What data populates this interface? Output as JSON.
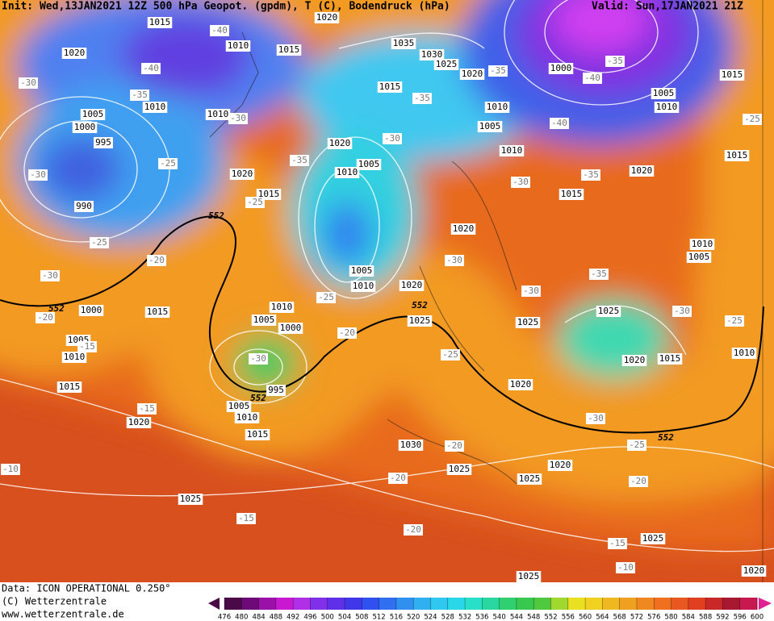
{
  "header": {
    "init": "Init: Wed,13JAN2021 12Z 500 hPa Geopot. (gpdm), T (C), Bodendruck (hPa)",
    "valid": "Valid: Sun,17JAN2021 21Z"
  },
  "map": {
    "pressure_labels": [
      "1015",
      "1020",
      "1020",
      "1010",
      "1015",
      "1035",
      "1030",
      "1025",
      "1020",
      "1000",
      "1015",
      "1005",
      "1015",
      "1010",
      "1010",
      "1005",
      "1000",
      "1010",
      "1010",
      "995",
      "1005",
      "1020",
      "1010",
      "1005",
      "1010",
      "1015",
      "1020",
      "1020",
      "1015",
      "1015",
      "990",
      "1020",
      "1010",
      "1005",
      "1005",
      "1010",
      "1020",
      "1000",
      "1015",
      "1010",
      "1005",
      "1000",
      "1025",
      "1025",
      "1025",
      "1005",
      "1010",
      "1020",
      "1015",
      "1010",
      "1015",
      "995",
      "1020",
      "1005",
      "1010",
      "1020",
      "1015",
      "1030",
      "1025",
      "1020",
      "1025",
      "1025",
      "1025",
      "1025",
      "1020"
    ],
    "temperature_labels": [
      "-40",
      "-40",
      "-35",
      "-35",
      "-40",
      "-30",
      "-35",
      "-35",
      "-30",
      "-40",
      "-25",
      "-30",
      "-35",
      "-25",
      "-30",
      "-35",
      "-30",
      "-25",
      "-25",
      "-20",
      "-30",
      "-30",
      "-35",
      "-30",
      "-25",
      "-30",
      "-20",
      "-25",
      "-20",
      "-25",
      "-30",
      "-15",
      "-15",
      "-30",
      "-25",
      "-20",
      "-10",
      "-20",
      "-20",
      "-15",
      "-20",
      "-15",
      "-10"
    ],
    "geopotential_labels": [
      "552",
      "552",
      "552",
      "552",
      "552"
    ]
  },
  "footer": {
    "data": "Data: ICON OPERATIONAL 0.250°",
    "copyright": "(C) Wetterzentrale",
    "url": "www.wetterzentrale.de"
  },
  "colorbar": {
    "ticks": [
      476,
      480,
      484,
      488,
      492,
      496,
      500,
      504,
      508,
      512,
      516,
      520,
      524,
      528,
      532,
      536,
      540,
      544,
      548,
      552,
      556,
      560,
      564,
      568,
      572,
      576,
      580,
      584,
      588,
      592,
      596,
      600
    ],
    "colors": [
      "#4a0a48",
      "#6e0a78",
      "#9a10a8",
      "#c818d0",
      "#b030e8",
      "#8030e8",
      "#6030e8",
      "#4038e8",
      "#3050f0",
      "#3070f0",
      "#3090f0",
      "#30b0f0",
      "#30c8f0",
      "#28d8e8",
      "#28e0c8",
      "#28d8a0",
      "#30d070",
      "#38c850",
      "#50c840",
      "#a0d830",
      "#e8e020",
      "#f0d020",
      "#f0b820",
      "#f0a020",
      "#f08820",
      "#f07020",
      "#e85820",
      "#e04020",
      "#c82828",
      "#a81830",
      "#c81850"
    ]
  }
}
